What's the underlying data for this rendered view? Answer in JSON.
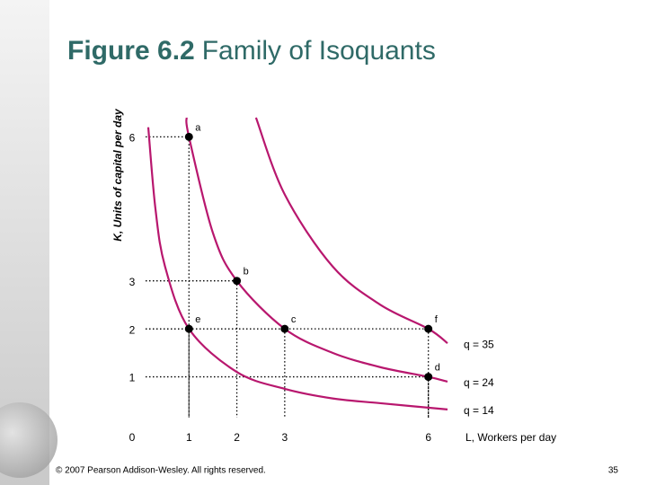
{
  "chart_data": {
    "type": "line",
    "figure_number": "Figure 6.2",
    "title": "Family of Isoquants",
    "y_label": "K, Units of capital per day",
    "x_label": "L, Workers per day",
    "xlim": [
      0,
      6.4
    ],
    "ylim": [
      0,
      6.4
    ],
    "xticks": [
      1,
      2,
      3,
      6
    ],
    "yticks": [
      0,
      1,
      2,
      3,
      6
    ],
    "series": [
      {
        "name": "q = 35",
        "color": "#b8176e",
        "x": [
          2.4,
          3,
          4,
          5,
          6,
          6.4
        ],
        "values": [
          6.4,
          4.8,
          3.3,
          2.5,
          2,
          1.7
        ]
      },
      {
        "name": "q = 24",
        "color": "#b8176e",
        "x": [
          0.95,
          1,
          1.5,
          2,
          3,
          4,
          5,
          6,
          6.4
        ],
        "values": [
          6.4,
          6,
          4,
          3,
          2,
          1.5,
          1.2,
          1,
          0.9
        ]
      },
      {
        "name": "q = 14",
        "color": "#b8176e",
        "x": [
          0.15,
          0.3,
          0.5,
          1,
          2,
          3,
          4,
          5,
          6.4
        ],
        "values": [
          6.2,
          4.5,
          3.3,
          2,
          1.1,
          0.75,
          0.55,
          0.45,
          0.32
        ]
      }
    ],
    "points": [
      {
        "label": "a",
        "x": 1,
        "y": 6
      },
      {
        "label": "b",
        "x": 2,
        "y": 3
      },
      {
        "label": "e",
        "x": 1,
        "y": 2
      },
      {
        "label": "c",
        "x": 3,
        "y": 2
      },
      {
        "label": "f",
        "x": 6,
        "y": 2
      },
      {
        "label": "d",
        "x": 6,
        "y": 1
      }
    ]
  },
  "footer": {
    "copyright": "© 2007 Pearson Addison-Wesley. All rights reserved.",
    "page_number": "35"
  }
}
